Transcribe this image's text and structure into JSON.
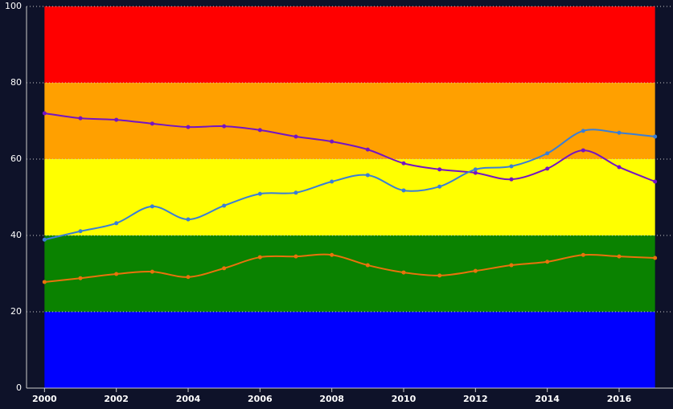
{
  "chart_data": {
    "type": "line",
    "x": [
      2000,
      2001,
      2002,
      2003,
      2004,
      2005,
      2006,
      2007,
      2008,
      2009,
      2010,
      2011,
      2012,
      2013,
      2014,
      2015,
      2016,
      2017
    ],
    "series": [
      {
        "color": "#7414c4",
        "values": [
          72.0,
          70.7,
          70.3,
          69.3,
          68.4,
          68.6,
          67.6,
          65.9,
          64.6,
          62.5,
          58.9,
          57.3,
          56.4,
          54.7,
          57.5,
          62.3,
          57.9,
          54.1
        ]
      },
      {
        "color": "#3a7ed6",
        "values": [
          38.9,
          41.1,
          43.2,
          47.6,
          44.2,
          47.8,
          50.9,
          51.2,
          54.1,
          55.8,
          51.8,
          52.8,
          57.3,
          58.1,
          61.5,
          67.4,
          66.9,
          65.9
        ]
      },
      {
        "color": "#e8720c",
        "values": [
          27.8,
          28.8,
          29.9,
          30.5,
          29.1,
          31.4,
          34.3,
          34.5,
          34.9,
          32.2,
          30.3,
          29.5,
          30.7,
          32.2,
          33.1,
          34.9,
          34.5,
          34.1
        ]
      }
    ],
    "bands": [
      {
        "from": 0,
        "to": 20,
        "color": "#0000ff"
      },
      {
        "from": 20,
        "to": 40,
        "color": "#0a8200"
      },
      {
        "from": 40,
        "to": 60,
        "color": "#ffff00"
      },
      {
        "from": 60,
        "to": 80,
        "color": "#ffa000"
      },
      {
        "from": 80,
        "to": 100,
        "color": "#ff0000"
      }
    ],
    "xlim": [
      1999.5,
      2017.5
    ],
    "xticks": [
      2000,
      2002,
      2004,
      2006,
      2008,
      2010,
      2012,
      2014,
      2016
    ],
    "ylim": [
      0,
      100
    ],
    "yticks": [
      0,
      20,
      40,
      60,
      80,
      100
    ],
    "grid": true
  }
}
